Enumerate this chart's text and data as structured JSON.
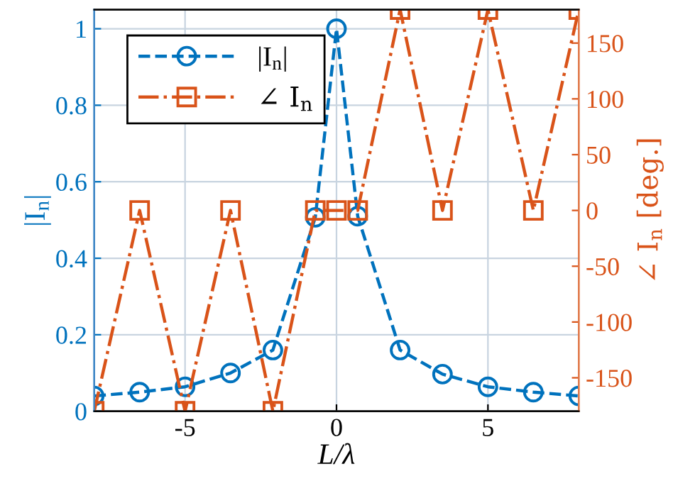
{
  "chart_data": {
    "type": "line",
    "xlabel": "L/λ",
    "ylabel": "|I$_{n}$|",
    "y2label": "∠ I$_{n}$ [deg.]",
    "x": [
      -8,
      -6.5,
      -5,
      -3.5,
      -2.1,
      -0.7,
      0,
      0.7,
      2.1,
      3.5,
      5,
      6.5,
      8
    ],
    "series": [
      {
        "name": "|I$_{n}$|",
        "color": "#0072bd",
        "marker": "circle",
        "line_style": "dashed",
        "values": [
          0.04,
          0.05,
          0.064,
          0.1,
          0.16,
          0.507,
          1.0,
          0.51,
          0.16,
          0.097,
          0.064,
          0.05,
          0.04
        ]
      },
      {
        "name": "∠ I$_{n}$",
        "color": "#d95319",
        "marker": "square",
        "line_style": "dashdot",
        "axis": "y2",
        "values": [
          -180,
          0,
          -180,
          0,
          -180,
          0,
          0,
          0,
          180,
          0,
          180,
          0,
          180
        ]
      }
    ],
    "xlim": [
      -8,
      8
    ],
    "xticks": [
      -5,
      0,
      5
    ],
    "ylim": [
      0,
      1.05
    ],
    "yticks": [
      0,
      0.2,
      0.4,
      0.6,
      0.8,
      1
    ],
    "y2lim": [
      -180,
      180
    ],
    "y2ticks": [
      -150,
      -100,
      -50,
      0,
      50,
      100,
      150
    ],
    "grid": true,
    "legend": "top left"
  }
}
